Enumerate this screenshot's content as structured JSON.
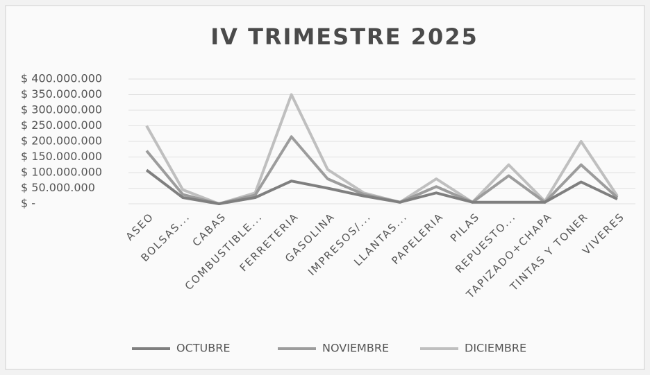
{
  "chart_data": {
    "type": "line",
    "title": "IV TRIMESTRE 2025",
    "categories": [
      "ASEO",
      "BOLSAS...",
      "CABAS",
      "COMBUSTIBLE...",
      "FERRETERIA",
      "GASOLINA",
      "IMPRESOS/...",
      "LLANTAS...",
      "PAPELERIA",
      "PILAS",
      "REPUESTO...",
      "TAPIZADO+CHAPA",
      "TINTAS Y TONER",
      "VIVERES"
    ],
    "series": [
      {
        "name": "OCTUBRE",
        "color": "#7f7f7f",
        "values": [
          108000000,
          20000000,
          0,
          20000000,
          73000000,
          50000000,
          25000000,
          5000000,
          35000000,
          5000000,
          5000000,
          5000000,
          70000000,
          15000000
        ]
      },
      {
        "name": "NOVIEMBRE",
        "color": "#9c9c9c",
        "values": [
          170000000,
          30000000,
          0,
          28000000,
          215000000,
          80000000,
          30000000,
          5000000,
          55000000,
          5000000,
          90000000,
          5000000,
          125000000,
          20000000
        ]
      },
      {
        "name": "DICIEMBRE",
        "color": "#bfbfbf",
        "values": [
          250000000,
          45000000,
          0,
          35000000,
          350000000,
          110000000,
          35000000,
          5000000,
          80000000,
          5000000,
          125000000,
          8000000,
          200000000,
          25000000
        ]
      }
    ],
    "ylim": [
      0,
      400000000
    ],
    "yticks": [
      {
        "value": 0,
        "label": "$ -"
      },
      {
        "value": 50000000,
        "label": "$ 50.000.000"
      },
      {
        "value": 100000000,
        "label": "$ 100.000.000"
      },
      {
        "value": 150000000,
        "label": "$ 150.000.000"
      },
      {
        "value": 200000000,
        "label": "$ 200.000.000"
      },
      {
        "value": 250000000,
        "label": "$ 250.000.000"
      },
      {
        "value": 300000000,
        "label": "$ 300.000.000"
      },
      {
        "value": 350000000,
        "label": "$ 350.000.000"
      },
      {
        "value": 400000000,
        "label": "$ 400.000.000"
      }
    ],
    "grid": true,
    "legend": "bottom"
  }
}
